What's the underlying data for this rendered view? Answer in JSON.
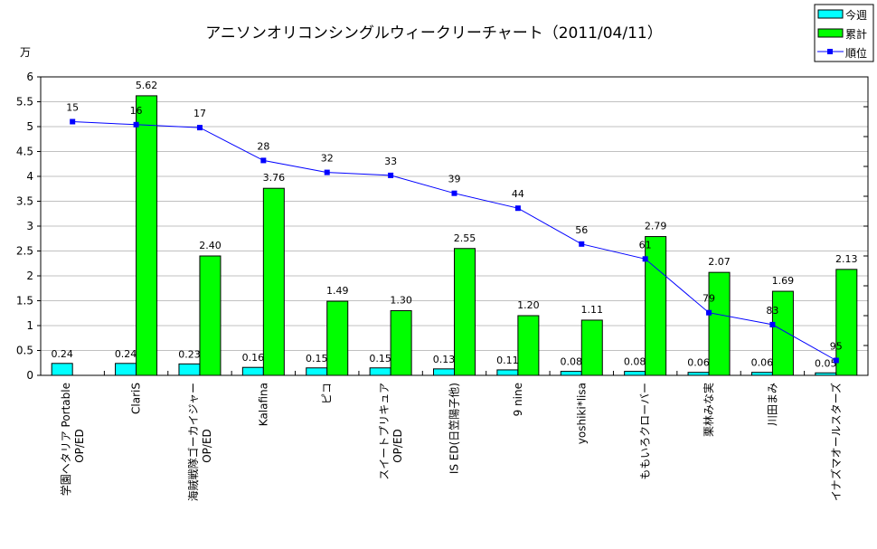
{
  "chart_data": {
    "type": "bar",
    "title": "アニソンオリコンシングルウィークリーチャート（2011/04/11）",
    "ylabel": "万",
    "ylim": [
      0,
      6
    ],
    "yticks": [
      "0",
      "0.5",
      "1",
      "1.5",
      "2",
      "2.5",
      "3",
      "3.5",
      "4",
      "4.5",
      "5",
      "5.5",
      "6"
    ],
    "y2lim": [
      100,
      0
    ],
    "grid": true,
    "legend_position": "top-right",
    "categories": [
      "学園ヘタリア Portable OP/ED",
      "ClariS",
      "海賊戦隊ゴーカイジャー OP/ED",
      "Kalafina",
      "ピコ",
      "スイートプリキュア OP/ED",
      "IS ED(日笠陽子他)",
      "9 nine",
      "yoshiki*lisa",
      "ももいろクローバー",
      "栗林みな実",
      "川田まみ",
      "イナズマオールスターズ"
    ],
    "series": [
      {
        "name": "今週",
        "type": "bar",
        "color": "#00FFFF",
        "values": [
          0.24,
          0.24,
          0.23,
          0.16,
          0.15,
          0.15,
          0.13,
          0.11,
          0.08,
          0.08,
          0.06,
          0.06,
          0.05
        ],
        "labels": [
          "0.24",
          "0.24",
          "0.23",
          "0.16",
          "0.15",
          "0.15",
          "0.13",
          "0.11",
          "0.08",
          "0.08",
          "0.06",
          "0.06",
          "0.05"
        ]
      },
      {
        "name": "累計",
        "type": "bar",
        "color": "#00FF00",
        "values": [
          null,
          5.62,
          2.4,
          3.76,
          1.49,
          1.3,
          2.55,
          1.2,
          1.11,
          2.79,
          2.07,
          1.69,
          2.13
        ],
        "labels": [
          "",
          "5.62",
          "2.40",
          "3.76",
          "1.49",
          "1.30",
          "2.55",
          "1.20",
          "1.11",
          "2.79",
          "2.07",
          "1.69",
          "2.13"
        ]
      },
      {
        "name": "順位",
        "type": "line",
        "axis": "secondary",
        "color": "#0000FF",
        "values": [
          15,
          16,
          17,
          28,
          32,
          33,
          39,
          44,
          56,
          61,
          79,
          83,
          95
        ],
        "labels": [
          "15",
          "16",
          "17",
          "28",
          "32",
          "33",
          "39",
          "44",
          "56",
          "61",
          "79",
          "83",
          "95"
        ]
      }
    ]
  }
}
